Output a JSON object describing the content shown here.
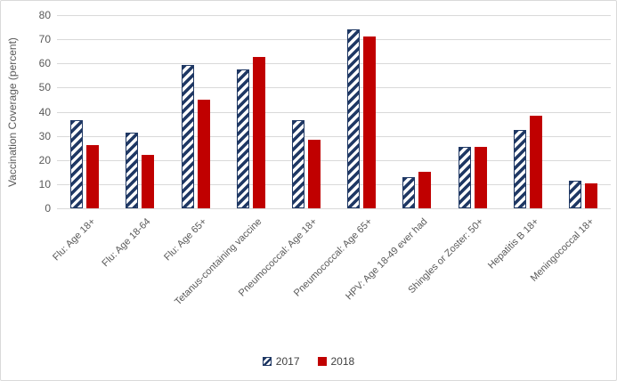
{
  "chart_data": {
    "type": "bar",
    "title": "",
    "xlabel": "",
    "ylabel": "Vaccination Coverage (percent)",
    "ylim": [
      0,
      80
    ],
    "yticks": [
      0,
      10,
      20,
      30,
      40,
      50,
      60,
      70,
      80
    ],
    "grid": true,
    "legend_position": "bottom",
    "categories": [
      "Flu: Age 18+",
      "Flu: Age 18-64",
      "Flu: Age 65+",
      "Tetanus-containing vaccine",
      "Pneumococcal: Age 18+",
      "Pneumococcal: Age 65+",
      "HPV: Age 18-49 ever had",
      "Shingles or Zoster: 50+",
      "Hepatitis B 18+",
      "Meningococcal 18+"
    ],
    "series": [
      {
        "name": "2017",
        "style": "hatched",
        "color": "#1F3864",
        "values": [
          36.5,
          31.5,
          59.5,
          57.5,
          36.5,
          74,
          13,
          25.5,
          32.5,
          11.5
        ]
      },
      {
        "name": "2018",
        "style": "solid",
        "color": "#C00000",
        "values": [
          26,
          22,
          45,
          62.5,
          28.5,
          71,
          15,
          25.5,
          38.5,
          10.5
        ]
      }
    ]
  },
  "colors": {
    "navy": "#1F3864",
    "red": "#C00000",
    "gridline": "#D9D9D9",
    "axis_text": "#595959",
    "legend_text": "#404040",
    "frame_border": "#D9D9D9"
  }
}
